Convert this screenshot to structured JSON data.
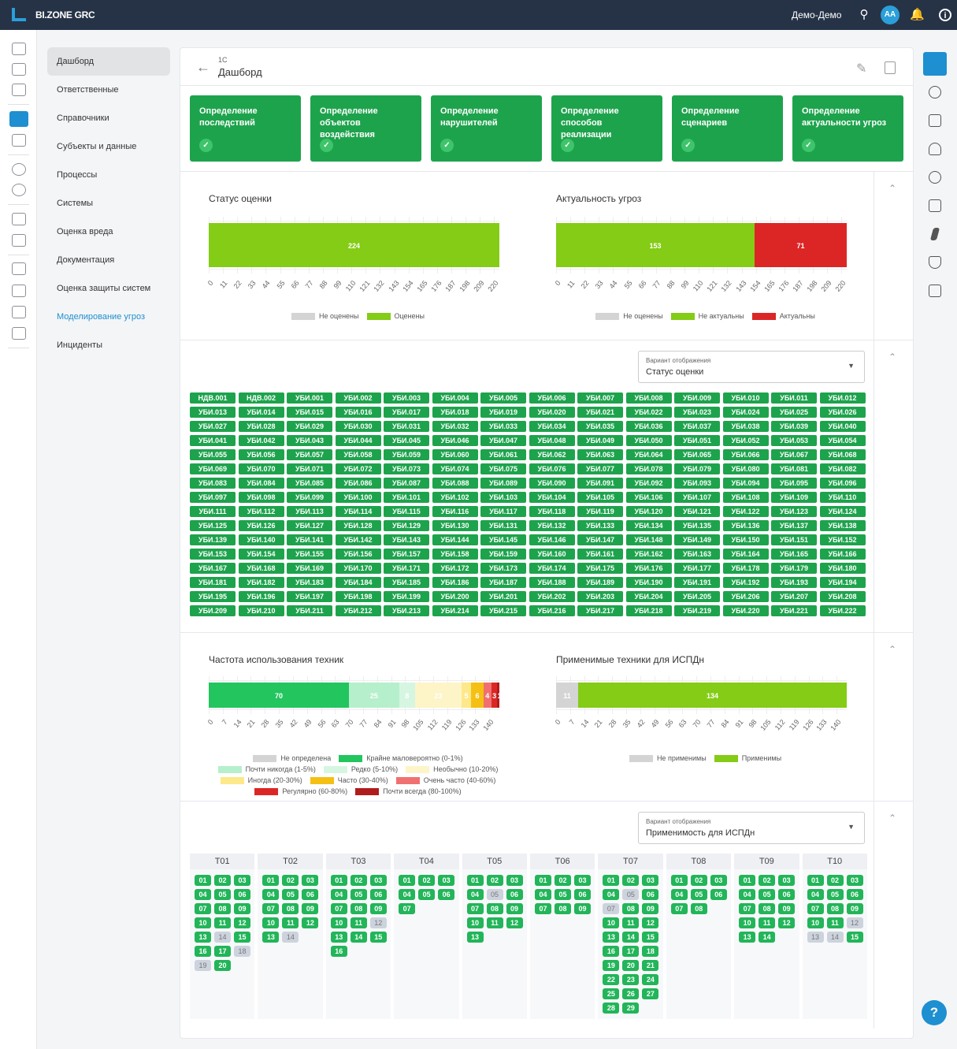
{
  "topbar": {
    "brand": "BI.ZONE GRC",
    "user": "Демо-Демо",
    "avatar": "AA"
  },
  "nav": {
    "items": [
      {
        "label": "Дашборд",
        "active": true
      },
      {
        "label": "Ответственные"
      },
      {
        "label": "Справочники"
      },
      {
        "label": "Субъекты и данные"
      },
      {
        "label": "Процессы"
      },
      {
        "label": "Системы"
      },
      {
        "label": "Оценка вреда"
      },
      {
        "label": "Документация"
      },
      {
        "label": "Оценка защиты систем"
      },
      {
        "label": "Моделирование угроз",
        "link": true
      },
      {
        "label": "Инциденты"
      }
    ]
  },
  "header": {
    "crumb": "1С",
    "title": "Дашборд"
  },
  "steps": [
    {
      "label": "Определение последствий"
    },
    {
      "label": "Определение объектов воздействия"
    },
    {
      "label": "Определение нарушителей"
    },
    {
      "label": "Определение способов реализации"
    },
    {
      "label": "Определение сценариев"
    },
    {
      "label": "Определение актуальности угроз"
    }
  ],
  "chart_data": [
    {
      "type": "bar",
      "stacked": true,
      "title": "Статус оценки",
      "ticks": [
        0,
        11,
        22,
        33,
        44,
        55,
        66,
        77,
        88,
        99,
        110,
        121,
        132,
        143,
        154,
        165,
        176,
        187,
        198,
        209,
        220
      ],
      "series": [
        {
          "name": "Не оценены",
          "value": 0,
          "color": "#d4d4d4"
        },
        {
          "name": "Оценены",
          "value": 224,
          "color": "#84cc16"
        }
      ],
      "legend": "bottom"
    },
    {
      "type": "bar",
      "stacked": true,
      "title": "Актуальность угроз",
      "ticks": [
        0,
        11,
        22,
        33,
        44,
        55,
        66,
        77,
        88,
        99,
        110,
        121,
        132,
        143,
        154,
        165,
        176,
        187,
        198,
        209,
        220
      ],
      "series": [
        {
          "name": "Не оценены",
          "value": 0,
          "color": "#d4d4d4"
        },
        {
          "name": "Не актуальны",
          "value": 153,
          "color": "#84cc16"
        },
        {
          "name": "Актуальны",
          "value": 71,
          "color": "#dc2626"
        }
      ],
      "legend": "bottom"
    },
    {
      "type": "bar",
      "stacked": true,
      "title": "Частота использования техник",
      "ticks": [
        0,
        7,
        14,
        21,
        28,
        35,
        42,
        49,
        56,
        63,
        70,
        77,
        84,
        91,
        98,
        105,
        112,
        119,
        126,
        133,
        140
      ],
      "series": [
        {
          "name": "Не определена",
          "value": 0,
          "color": "#d4d4d4"
        },
        {
          "name": "Крайне маловероятно (0-1%)",
          "value": 70,
          "color": "#22c55e"
        },
        {
          "name": "Почти никогда (1-5%)",
          "value": 25,
          "color": "#b6efcb"
        },
        {
          "name": "Редко (5-10%)",
          "value": 8,
          "color": "#d6f6e2"
        },
        {
          "name": "Необычно (10-20%)",
          "value": 23,
          "color": "#fdf4c8"
        },
        {
          "name": "Иногда (20-30%)",
          "value": 5,
          "color": "#fde88a"
        },
        {
          "name": "Часто (30-40%)",
          "value": 6,
          "color": "#f5c014"
        },
        {
          "name": "Очень часто (40-60%)",
          "value": 4,
          "color": "#f07070"
        },
        {
          "name": "Регулярно (60-80%)",
          "value": 3,
          "color": "#dc2626"
        },
        {
          "name": "Почти всегда (80-100%)",
          "value": 1,
          "color": "#b01c1c"
        }
      ],
      "legend": "bottom"
    },
    {
      "type": "bar",
      "stacked": true,
      "title": "Применимые техники для ИСПДн",
      "ticks": [
        0,
        7,
        14,
        21,
        28,
        35,
        42,
        49,
        56,
        63,
        70,
        77,
        84,
        91,
        98,
        105,
        112,
        119,
        126,
        133,
        140
      ],
      "series": [
        {
          "name": "Не применимы",
          "value": 11,
          "color": "#d4d4d4"
        },
        {
          "name": "Применимы",
          "value": 134,
          "color": "#84cc16"
        }
      ],
      "legend": "bottom"
    }
  ],
  "threats": {
    "select_label": "Вариант отображения",
    "select_value": "Статус оценки",
    "items": [
      "НДВ.001",
      "НДВ.002",
      "УБИ.001",
      "УБИ.002",
      "УБИ.003",
      "УБИ.004",
      "УБИ.005",
      "УБИ.006",
      "УБИ.007",
      "УБИ.008",
      "УБИ.009",
      "УБИ.010",
      "УБИ.011",
      "УБИ.012",
      "УБИ.013",
      "УБИ.014",
      "УБИ.015",
      "УБИ.016",
      "УБИ.017",
      "УБИ.018",
      "УБИ.019",
      "УБИ.020",
      "УБИ.021",
      "УБИ.022",
      "УБИ.023",
      "УБИ.024",
      "УБИ.025",
      "УБИ.026",
      "УБИ.027",
      "УБИ.028",
      "УБИ.029",
      "УБИ.030",
      "УБИ.031",
      "УБИ.032",
      "УБИ.033",
      "УБИ.034",
      "УБИ.035",
      "УБИ.036",
      "УБИ.037",
      "УБИ.038",
      "УБИ.039",
      "УБИ.040",
      "УБИ.041",
      "УБИ.042",
      "УБИ.043",
      "УБИ.044",
      "УБИ.045",
      "УБИ.046",
      "УБИ.047",
      "УБИ.048",
      "УБИ.049",
      "УБИ.050",
      "УБИ.051",
      "УБИ.052",
      "УБИ.053",
      "УБИ.054",
      "УБИ.055",
      "УБИ.056",
      "УБИ.057",
      "УБИ.058",
      "УБИ.059",
      "УБИ.060",
      "УБИ.061",
      "УБИ.062",
      "УБИ.063",
      "УБИ.064",
      "УБИ.065",
      "УБИ.066",
      "УБИ.067",
      "УБИ.068",
      "УБИ.069",
      "УБИ.070",
      "УБИ.071",
      "УБИ.072",
      "УБИ.073",
      "УБИ.074",
      "УБИ.075",
      "УБИ.076",
      "УБИ.077",
      "УБИ.078",
      "УБИ.079",
      "УБИ.080",
      "УБИ.081",
      "УБИ.082",
      "УБИ.083",
      "УБИ.084",
      "УБИ.085",
      "УБИ.086",
      "УБИ.087",
      "УБИ.088",
      "УБИ.089",
      "УБИ.090",
      "УБИ.091",
      "УБИ.092",
      "УБИ.093",
      "УБИ.094",
      "УБИ.095",
      "УБИ.096",
      "УБИ.097",
      "УБИ.098",
      "УБИ.099",
      "УБИ.100",
      "УБИ.101",
      "УБИ.102",
      "УБИ.103",
      "УБИ.104",
      "УБИ.105",
      "УБИ.106",
      "УБИ.107",
      "УБИ.108",
      "УБИ.109",
      "УБИ.110",
      "УБИ.111",
      "УБИ.112",
      "УБИ.113",
      "УБИ.114",
      "УБИ.115",
      "УБИ.116",
      "УБИ.117",
      "УБИ.118",
      "УБИ.119",
      "УБИ.120",
      "УБИ.121",
      "УБИ.122",
      "УБИ.123",
      "УБИ.124",
      "УБИ.125",
      "УБИ.126",
      "УБИ.127",
      "УБИ.128",
      "УБИ.129",
      "УБИ.130",
      "УБИ.131",
      "УБИ.132",
      "УБИ.133",
      "УБИ.134",
      "УБИ.135",
      "УБИ.136",
      "УБИ.137",
      "УБИ.138",
      "УБИ.139",
      "УБИ.140",
      "УБИ.141",
      "УБИ.142",
      "УБИ.143",
      "УБИ.144",
      "УБИ.145",
      "УБИ.146",
      "УБИ.147",
      "УБИ.148",
      "УБИ.149",
      "УБИ.150",
      "УБИ.151",
      "УБИ.152",
      "УБИ.153",
      "УБИ.154",
      "УБИ.155",
      "УБИ.156",
      "УБИ.157",
      "УБИ.158",
      "УБИ.159",
      "УБИ.160",
      "УБИ.161",
      "УБИ.162",
      "УБИ.163",
      "УБИ.164",
      "УБИ.165",
      "УБИ.166",
      "УБИ.167",
      "УБИ.168",
      "УБИ.169",
      "УБИ.170",
      "УБИ.171",
      "УБИ.172",
      "УБИ.173",
      "УБИ.174",
      "УБИ.175",
      "УБИ.176",
      "УБИ.177",
      "УБИ.178",
      "УБИ.179",
      "УБИ.180",
      "УБИ.181",
      "УБИ.182",
      "УБИ.183",
      "УБИ.184",
      "УБИ.185",
      "УБИ.186",
      "УБИ.187",
      "УБИ.188",
      "УБИ.189",
      "УБИ.190",
      "УБИ.191",
      "УБИ.192",
      "УБИ.193",
      "УБИ.194",
      "УБИ.195",
      "УБИ.196",
      "УБИ.197",
      "УБИ.198",
      "УБИ.199",
      "УБИ.200",
      "УБИ.201",
      "УБИ.202",
      "УБИ.203",
      "УБИ.204",
      "УБИ.205",
      "УБИ.206",
      "УБИ.207",
      "УБИ.208",
      "УБИ.209",
      "УБИ.210",
      "УБИ.211",
      "УБИ.212",
      "УБИ.213",
      "УБИ.214",
      "УБИ.215",
      "УБИ.216",
      "УБИ.217",
      "УБИ.218",
      "УБИ.219",
      "УБИ.220",
      "УБИ.221",
      "УБИ.222"
    ]
  },
  "tactics": {
    "select_label": "Вариант отображения",
    "select_value": "Применимость для ИСПДн",
    "columns": [
      {
        "label": "T01",
        "count": 20,
        "inactive": [
          "14",
          "18",
          "19"
        ]
      },
      {
        "label": "T02",
        "count": 14,
        "inactive": [
          "14"
        ]
      },
      {
        "label": "T03",
        "count": 16,
        "inactive": [
          "12"
        ]
      },
      {
        "label": "T04",
        "count": 7,
        "inactive": []
      },
      {
        "label": "T05",
        "count": 13,
        "inactive": [
          "05"
        ]
      },
      {
        "label": "T06",
        "count": 9,
        "inactive": []
      },
      {
        "label": "T07",
        "count": 29,
        "inactive": [
          "05",
          "07"
        ]
      },
      {
        "label": "T08",
        "count": 8,
        "inactive": []
      },
      {
        "label": "T09",
        "count": 14,
        "inactive": []
      },
      {
        "label": "T10",
        "count": 15,
        "inactive": [
          "12",
          "13",
          "14"
        ]
      }
    ]
  },
  "help": "?"
}
